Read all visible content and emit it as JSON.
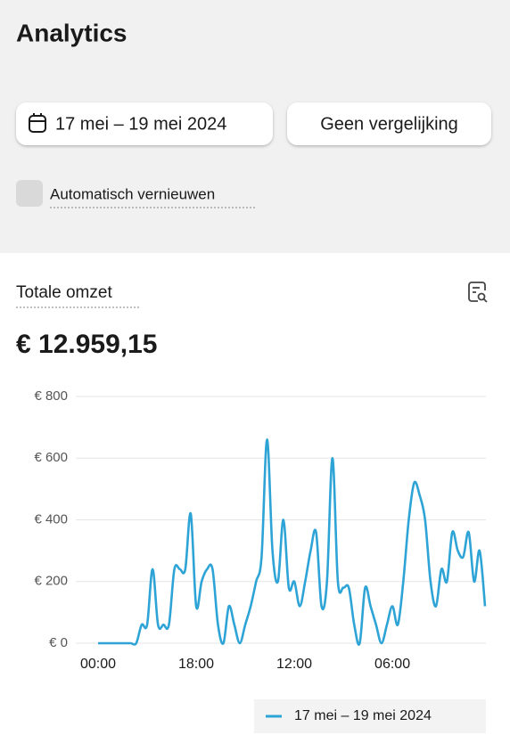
{
  "header": {
    "title": "Analytics"
  },
  "controls": {
    "date_range": "17 mei – 19 mei 2024",
    "comparison": "Geen vergelijking",
    "auto_refresh": "Automatisch vernieuwen"
  },
  "card": {
    "title": "Totale omzet",
    "total": "€ 12.959,15"
  },
  "chart_data": {
    "type": "line",
    "categories": [
      "00:00",
      null,
      null,
      null,
      null,
      null,
      null,
      null,
      null,
      null,
      null,
      null,
      null,
      null,
      null,
      null,
      null,
      null,
      "18:00",
      null,
      null,
      null,
      null,
      null,
      null,
      null,
      null,
      null,
      null,
      null,
      null,
      null,
      null,
      null,
      null,
      null,
      "12:00",
      null,
      null,
      null,
      null,
      null,
      null,
      null,
      null,
      null,
      null,
      null,
      null,
      null,
      null,
      null,
      null,
      null,
      "06:00",
      null,
      null,
      null,
      null,
      null,
      null,
      null,
      null,
      null,
      null,
      null,
      null,
      null,
      null,
      null,
      null,
      null
    ],
    "series": [
      {
        "name": "17 mei – 19 mei 2024",
        "color": "#2ea4d6",
        "values": [
          0,
          0,
          0,
          0,
          0,
          0,
          0,
          0,
          60,
          60,
          240,
          60,
          60,
          60,
          240,
          240,
          240,
          420,
          120,
          200,
          240,
          240,
          60,
          0,
          120,
          60,
          0,
          60,
          120,
          200,
          280,
          660,
          300,
          200,
          400,
          180,
          200,
          120,
          200,
          300,
          360,
          120,
          200,
          600,
          200,
          180,
          180,
          60,
          0,
          180,
          120,
          60,
          0,
          60,
          120,
          60,
          200,
          400,
          520,
          480,
          400,
          200,
          120,
          240,
          200,
          360,
          300,
          280,
          360,
          200,
          300,
          120
        ]
      }
    ],
    "ylim": [
      0,
      800
    ],
    "yticks": [
      {
        "value": 0,
        "label": "€ 0"
      },
      {
        "value": 200,
        "label": "€ 200"
      },
      {
        "value": 400,
        "label": "€ 400"
      },
      {
        "value": 600,
        "label": "€ 600"
      },
      {
        "value": 800,
        "label": "€ 800"
      }
    ],
    "grid": true
  }
}
